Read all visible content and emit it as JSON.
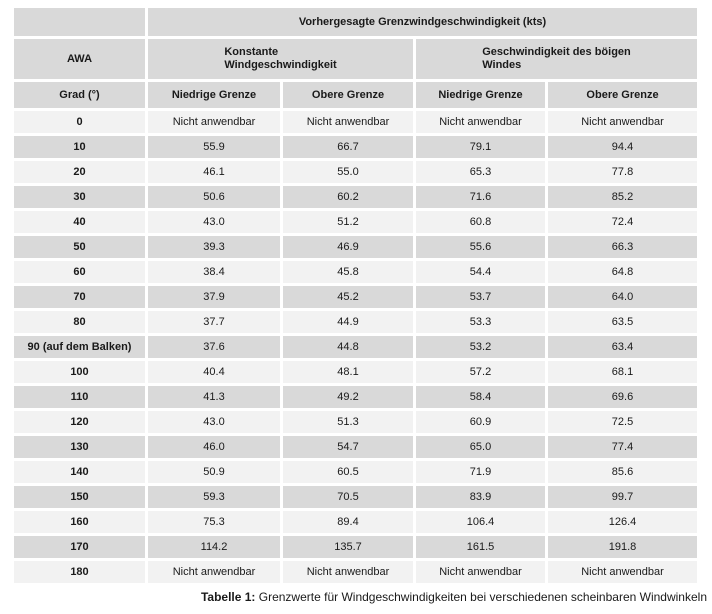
{
  "table": {
    "top_header": "Vorhergesagte Grenzwindgeschwindigkeit (kts)",
    "group_headers": {
      "awa": "AWA",
      "constant_wind": "Konstante\nWindgeschwindigkeit",
      "gust_wind": "Geschwindigkeit des böigen\nWindes"
    },
    "col_headers": {
      "grad": "Grad (°)",
      "constant_lower": "Niedrige Grenze",
      "constant_upper": "Obere Grenze",
      "gust_lower": "Niedrige Grenze",
      "gust_upper": "Obere Grenze"
    },
    "rows": [
      {
        "awa": "0",
        "values": [
          "Nicht anwendbar",
          "Nicht anwendbar",
          "Nicht anwendbar",
          "Nicht anwendbar"
        ]
      },
      {
        "awa": "10",
        "values": [
          "55.9",
          "66.7",
          "79.1",
          "94.4"
        ]
      },
      {
        "awa": "20",
        "values": [
          "46.1",
          "55.0",
          "65.3",
          "77.8"
        ]
      },
      {
        "awa": "30",
        "values": [
          "50.6",
          "60.2",
          "71.6",
          "85.2"
        ]
      },
      {
        "awa": "40",
        "values": [
          "43.0",
          "51.2",
          "60.8",
          "72.4"
        ]
      },
      {
        "awa": "50",
        "values": [
          "39.3",
          "46.9",
          "55.6",
          "66.3"
        ]
      },
      {
        "awa": "60",
        "values": [
          "38.4",
          "45.8",
          "54.4",
          "64.8"
        ]
      },
      {
        "awa": "70",
        "values": [
          "37.9",
          "45.2",
          "53.7",
          "64.0"
        ]
      },
      {
        "awa": "80",
        "values": [
          "37.7",
          "44.9",
          "53.3",
          "63.5"
        ]
      },
      {
        "awa": "90 (auf dem Balken)",
        "values": [
          "37.6",
          "44.8",
          "53.2",
          "63.4"
        ]
      },
      {
        "awa": "100",
        "values": [
          "40.4",
          "48.1",
          "57.2",
          "68.1"
        ]
      },
      {
        "awa": "110",
        "values": [
          "41.3",
          "49.2",
          "58.4",
          "69.6"
        ]
      },
      {
        "awa": "120",
        "values": [
          "43.0",
          "51.3",
          "60.9",
          "72.5"
        ]
      },
      {
        "awa": "130",
        "values": [
          "46.0",
          "54.7",
          "65.0",
          "77.4"
        ]
      },
      {
        "awa": "140",
        "values": [
          "50.9",
          "60.5",
          "71.9",
          "85.6"
        ]
      },
      {
        "awa": "150",
        "values": [
          "59.3",
          "70.5",
          "83.9",
          "99.7"
        ]
      },
      {
        "awa": "160",
        "values": [
          "75.3",
          "89.4",
          "106.4",
          "126.4"
        ]
      },
      {
        "awa": "170",
        "values": [
          "114.2",
          "135.7",
          "161.5",
          "191.8"
        ]
      },
      {
        "awa": "180",
        "values": [
          "Nicht anwendbar",
          "Nicht anwendbar",
          "Nicht anwendbar",
          "Nicht anwendbar"
        ]
      }
    ]
  },
  "caption": {
    "label": "Tabelle 1:",
    "text": " Grenzwerte für Windgeschwindigkeiten bei verschiedenen scheinbaren Windwinkeln"
  },
  "colors": {
    "header_bg": "#d9d9d9",
    "row_dark": "#d9d9d9",
    "row_light": "#f2f2f2",
    "gap": "#ffffff",
    "text": "#1a1a1a"
  }
}
